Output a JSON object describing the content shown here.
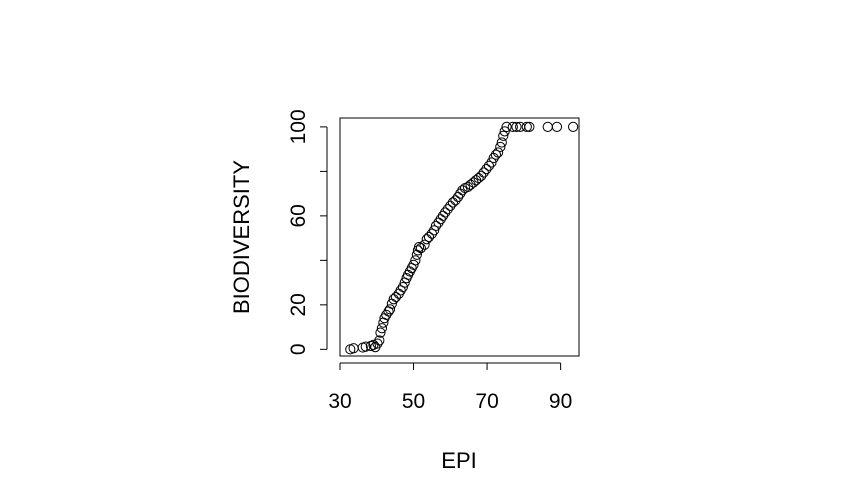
{
  "chart_data": {
    "type": "scatter",
    "xlabel": "EPI",
    "ylabel": "BIODIVERSITY",
    "xlim": [
      30,
      95
    ],
    "ylim": [
      -3,
      104
    ],
    "xticks": [
      30,
      50,
      70,
      90
    ],
    "yticks": [
      0,
      20,
      40,
      60,
      80,
      100
    ],
    "ytick_labels": [
      "0",
      "20",
      "",
      "60",
      "",
      "100"
    ],
    "grid": false,
    "legend": "none",
    "marker": "open-circle",
    "color": "#000000",
    "points": [
      [
        32.8,
        0.0
      ],
      [
        33.7,
        0.5
      ],
      [
        36.2,
        0.8
      ],
      [
        37.0,
        1.2
      ],
      [
        38.4,
        1.5
      ],
      [
        39.1,
        2.0
      ],
      [
        39.6,
        1.0
      ],
      [
        40.2,
        2.6
      ],
      [
        40.7,
        4.0
      ],
      [
        41.0,
        7.5
      ],
      [
        41.4,
        9.5
      ],
      [
        41.8,
        12.0
      ],
      [
        42.1,
        14.0
      ],
      [
        42.6,
        15.5
      ],
      [
        43.2,
        17.0
      ],
      [
        43.6,
        18.0
      ],
      [
        44.1,
        20.5
      ],
      [
        44.6,
        22.5
      ],
      [
        45.2,
        23.5
      ],
      [
        46.0,
        25.0
      ],
      [
        46.5,
        26.5
      ],
      [
        47.1,
        28.0
      ],
      [
        47.6,
        30.0
      ],
      [
        48.1,
        32.0
      ],
      [
        48.5,
        33.5
      ],
      [
        49.0,
        35.0
      ],
      [
        49.5,
        36.5
      ],
      [
        50.0,
        38.0
      ],
      [
        50.5,
        40.0
      ],
      [
        50.9,
        42.5
      ],
      [
        51.2,
        44.5
      ],
      [
        51.5,
        46.0
      ],
      [
        52.0,
        45.5
      ],
      [
        53.0,
        47.0
      ],
      [
        53.6,
        49.5
      ],
      [
        54.2,
        50.5
      ],
      [
        55.0,
        52.0
      ],
      [
        55.6,
        53.5
      ],
      [
        56.1,
        55.5
      ],
      [
        56.8,
        57.0
      ],
      [
        57.4,
        58.5
      ],
      [
        58.0,
        60.0
      ],
      [
        58.6,
        61.5
      ],
      [
        59.3,
        63.0
      ],
      [
        60.0,
        64.5
      ],
      [
        60.7,
        66.0
      ],
      [
        61.4,
        67.0
      ],
      [
        62.1,
        68.5
      ],
      [
        62.7,
        70.0
      ],
      [
        63.3,
        71.5
      ],
      [
        64.0,
        72.5
      ],
      [
        64.8,
        73.0
      ],
      [
        65.5,
        74.0
      ],
      [
        66.3,
        75.0
      ],
      [
        67.0,
        76.0
      ],
      [
        67.7,
        77.0
      ],
      [
        68.4,
        78.0
      ],
      [
        69.1,
        79.5
      ],
      [
        69.8,
        81.0
      ],
      [
        70.5,
        82.5
      ],
      [
        71.2,
        84.0
      ],
      [
        71.8,
        86.0
      ],
      [
        72.4,
        87.5
      ],
      [
        73.0,
        88.5
      ],
      [
        73.6,
        91.0
      ],
      [
        74.0,
        93.0
      ],
      [
        74.4,
        96.0
      ],
      [
        74.8,
        98.0
      ],
      [
        75.3,
        100.0
      ],
      [
        77.0,
        100.0
      ],
      [
        78.0,
        100.0
      ],
      [
        79.0,
        100.0
      ],
      [
        80.8,
        100.0
      ],
      [
        81.5,
        100.0
      ],
      [
        86.5,
        100.0
      ],
      [
        89.0,
        100.0
      ],
      [
        93.4,
        100.0
      ]
    ]
  }
}
